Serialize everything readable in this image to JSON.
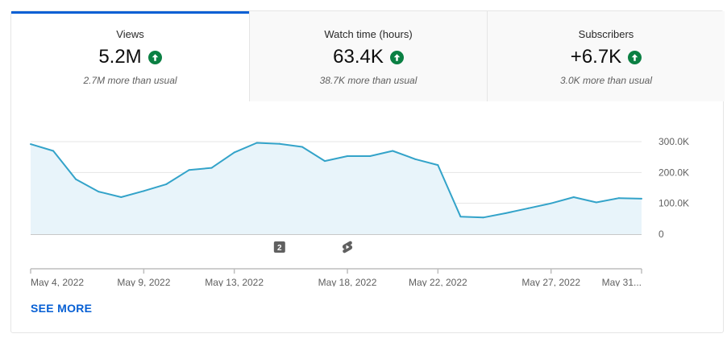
{
  "tabs": [
    {
      "label": "Views",
      "value": "5.2M",
      "sub": "2.7M more than usual",
      "active": true
    },
    {
      "label": "Watch time (hours)",
      "value": "63.4K",
      "sub": "38.7K more than usual",
      "active": false
    },
    {
      "label": "Subscribers",
      "value": "+6.7K",
      "sub": "3.0K more than usual",
      "active": false
    }
  ],
  "icons": {
    "trend": "arrow-up-circle-icon",
    "markers": [
      "video-badge-icon",
      "shorts-icon"
    ]
  },
  "colors": {
    "line": "#33a3c9",
    "fill": "#e8f4fa",
    "up": "#0b8043",
    "accent": "#065fd4"
  },
  "markers": [
    {
      "label": "2",
      "x": "2022-05-15"
    },
    {
      "label": "",
      "x": "2022-05-18"
    }
  ],
  "see_more": "SEE MORE",
  "chart_data": {
    "type": "area",
    "x_start": "2022-05-04",
    "x": [
      "2022-05-04",
      "2022-05-05",
      "2022-05-06",
      "2022-05-07",
      "2022-05-08",
      "2022-05-09",
      "2022-05-10",
      "2022-05-11",
      "2022-05-12",
      "2022-05-13",
      "2022-05-14",
      "2022-05-15",
      "2022-05-16",
      "2022-05-17",
      "2022-05-18",
      "2022-05-19",
      "2022-05-20",
      "2022-05-21",
      "2022-05-22",
      "2022-05-23",
      "2022-05-24",
      "2022-05-25",
      "2022-05-26",
      "2022-05-27",
      "2022-05-28",
      "2022-05-29",
      "2022-05-30",
      "2022-05-31"
    ],
    "values": [
      292000,
      270000,
      178000,
      138000,
      120000,
      140000,
      162000,
      208000,
      215000,
      265000,
      296000,
      293000,
      283000,
      237000,
      253000,
      253000,
      270000,
      243000,
      224000,
      57000,
      54000,
      68000,
      84000,
      100000,
      120000,
      103000,
      117000,
      115000
    ],
    "xlim": [
      "2022-05-04",
      "2022-05-31"
    ],
    "ylim": [
      0,
      300000
    ],
    "yticks": [
      "0",
      "100.0K",
      "200.0K",
      "300.0K"
    ],
    "ytick_values": [
      0,
      100000,
      200000,
      300000
    ],
    "xticks": [
      {
        "label": "May 4, 2022",
        "x": "2022-05-04"
      },
      {
        "label": "May 9, 2022",
        "x": "2022-05-09"
      },
      {
        "label": "May 13, 2022",
        "x": "2022-05-13"
      },
      {
        "label": "May 18, 2022",
        "x": "2022-05-18"
      },
      {
        "label": "May 22, 2022",
        "x": "2022-05-22"
      },
      {
        "label": "May 27, 2022",
        "x": "2022-05-27"
      },
      {
        "label": "May 31...",
        "x": "2022-05-31"
      }
    ],
    "grid": true
  }
}
